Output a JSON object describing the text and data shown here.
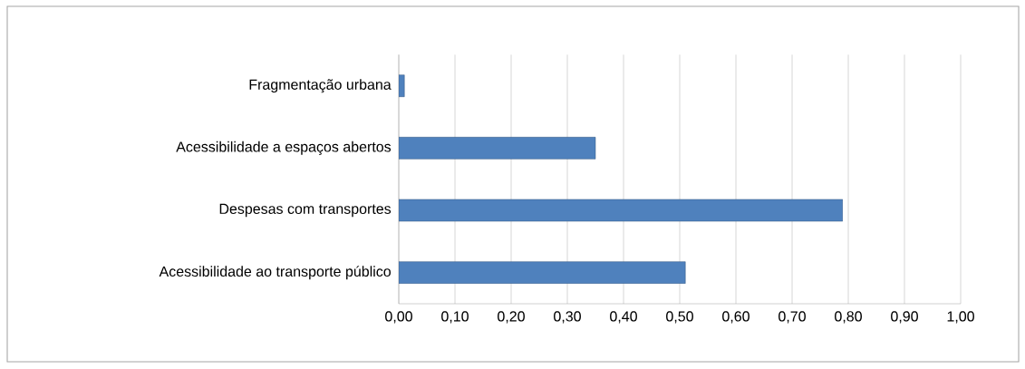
{
  "chart_data": {
    "type": "bar",
    "orientation": "horizontal",
    "categories": [
      "Fragmentação urbana",
      "Acessibilidade a espaços abertos",
      "Despesas com transportes",
      "Acessibilidade ao transporte público"
    ],
    "values": [
      0.01,
      0.35,
      0.79,
      0.51
    ],
    "color": "#4f81bd",
    "xlim": [
      0,
      1
    ],
    "xticks": [
      {
        "value": 0,
        "label": "0,00"
      },
      {
        "value": 0.1,
        "label": "0,10"
      },
      {
        "value": 0.2,
        "label": "0,20"
      },
      {
        "value": 0.3,
        "label": "0,30"
      },
      {
        "value": 0.4,
        "label": "0,40"
      },
      {
        "value": 0.5,
        "label": "0,50"
      },
      {
        "value": 0.6,
        "label": "0,60"
      },
      {
        "value": 0.7,
        "label": "0,70"
      },
      {
        "value": 0.8,
        "label": "0,80"
      },
      {
        "value": 0.9,
        "label": "0,90"
      },
      {
        "value": 1,
        "label": "1,00"
      }
    ],
    "grid": "x"
  }
}
